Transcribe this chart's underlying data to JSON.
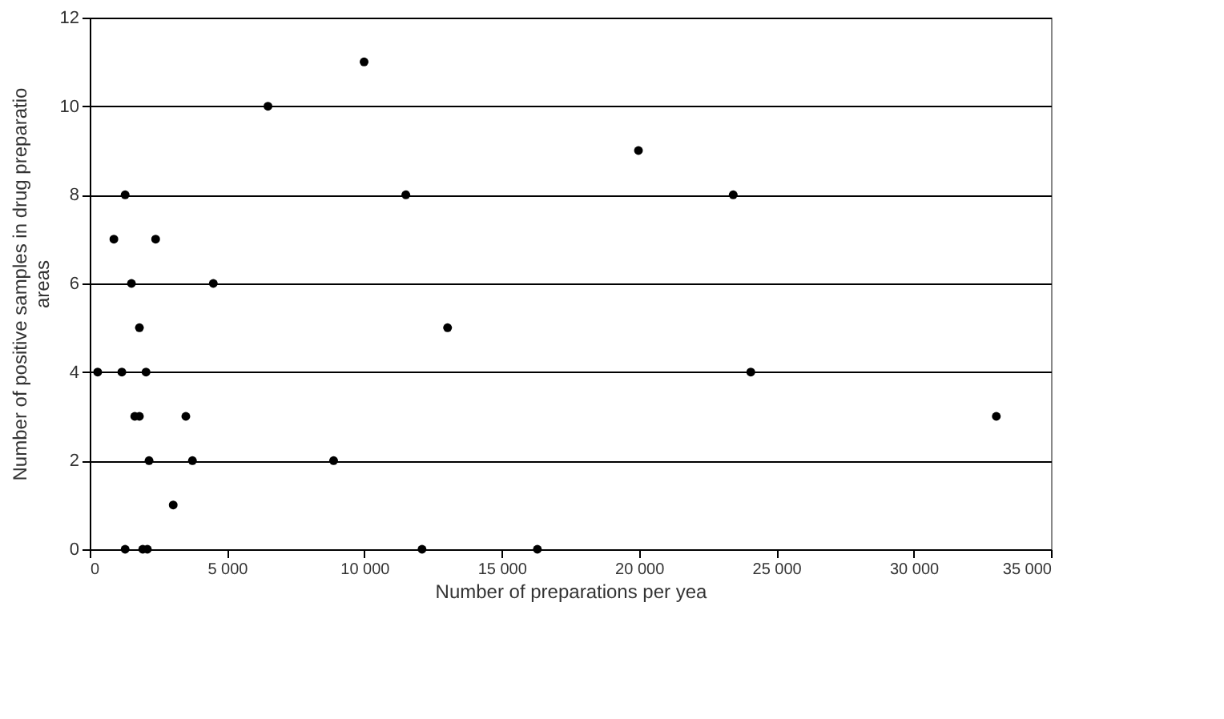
{
  "chart_data": {
    "type": "scatter",
    "xlabel": "Number of preparations per yea",
    "ylabel": "Number of positive samples in drug preparatio areas",
    "x": [
      290,
      880,
      1290,
      1170,
      1520,
      1640,
      1810,
      1810,
      2050,
      2400,
      2160,
      1290,
      1930,
      2100,
      3040,
      3500,
      3740,
      4500,
      6490,
      9990,
      8880,
      11510,
      12100,
      13030,
      16300,
      19980,
      23430,
      24070,
      33010
    ],
    "values": [
      4,
      7,
      8,
      4,
      6,
      3,
      3,
      5,
      4,
      7,
      2,
      0,
      0,
      0,
      1,
      3,
      2,
      6,
      10,
      11,
      2,
      8,
      0,
      5,
      0,
      9,
      8,
      4,
      3
    ],
    "color": "#000000",
    "marker": "circle",
    "xlim": [
      0,
      35000
    ],
    "xticks": [
      0,
      {
        "value": 5000,
        "label": "5 000"
      },
      {
        "value": 10000,
        "label": "10 000"
      },
      {
        "value": 15000,
        "label": "15 000"
      },
      {
        "value": 20000,
        "label": "20 000"
      },
      {
        "value": 25000,
        "label": "25 000"
      },
      {
        "value": 30000,
        "label": "30 000"
      },
      {
        "value": 35000,
        "label": "35 000"
      }
    ],
    "ylim": [
      0,
      12
    ],
    "yticks": [
      0,
      2,
      4,
      6,
      8,
      10,
      12
    ],
    "grid": "y"
  }
}
